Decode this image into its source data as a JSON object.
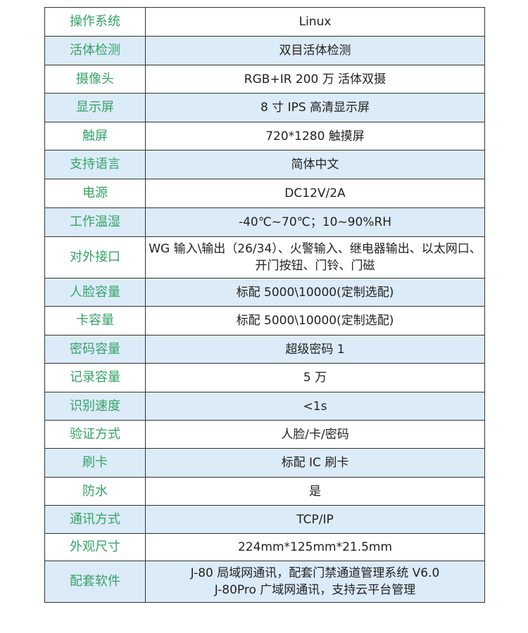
{
  "colors": {
    "label": "#35a368",
    "stripe": "#dcebf8",
    "border": "#333333",
    "text": "#222222"
  },
  "rows": [
    {
      "label": "操作系统",
      "value": "Linux"
    },
    {
      "label": "活体检测",
      "value": "双目活体检测"
    },
    {
      "label": "摄像头",
      "value": "RGB+IR 200 万  活体双摄"
    },
    {
      "label": "显示屏",
      "value": "8 寸 IPS 高清显示屏"
    },
    {
      "label": "触屏",
      "value": "720*1280 触摸屏"
    },
    {
      "label": "支持语言",
      "value": "简体中文"
    },
    {
      "label": "电源",
      "value": "DC12V/2A"
    },
    {
      "label": "工作温湿",
      "value": "-40℃~70℃；10~90%RH"
    },
    {
      "label": "对外接口",
      "value": "WG 输入\\输出（26/34）、火警输入、继电器输出、以太网口、开门按钮、门铃、门磁"
    },
    {
      "label": "人脸容量",
      "value": "标配 5000\\10000(定制选配)"
    },
    {
      "label": "卡容量",
      "value": "标配 5000\\10000(定制选配)"
    },
    {
      "label": "密码容量",
      "value": "超级密码 1"
    },
    {
      "label": "记录容量",
      "value": "5 万"
    },
    {
      "label": "识别速度",
      "value": "<1s"
    },
    {
      "label": "验证方式",
      "value": "人脸/卡/密码"
    },
    {
      "label": "刷卡",
      "value": "标配 IC 刷卡"
    },
    {
      "label": "防水",
      "value": "是"
    },
    {
      "label": "通讯方式",
      "value": "TCP/IP"
    },
    {
      "label": "外观尺寸",
      "value": "224mm*125mm*21.5mm"
    },
    {
      "label": "配套软件",
      "value": "J-80 局域网通讯，配套门禁通道管理系统 V6.0",
      "value2": "J-80Pro 广域网通讯，支持云平台管理"
    }
  ]
}
